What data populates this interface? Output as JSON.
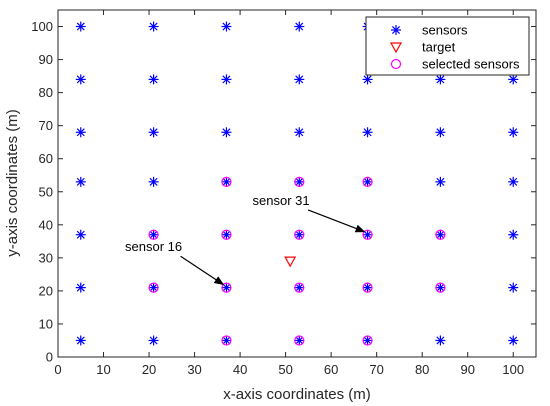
{
  "chart_data": {
    "type": "scatter",
    "xlabel": "x-axis coordinates (m)",
    "ylabel": "y-axis coordinates (m)",
    "xlim": [
      0,
      105
    ],
    "ylim": [
      0,
      105
    ],
    "xticks": [
      "0",
      "10",
      "20",
      "30",
      "40",
      "50",
      "60",
      "70",
      "80",
      "90",
      "100"
    ],
    "yticks": [
      "0",
      "10",
      "20",
      "30",
      "40",
      "50",
      "60",
      "70",
      "80",
      "90",
      "100"
    ],
    "grid": false,
    "legend_position": "top-right",
    "series": [
      {
        "name": "sensors",
        "marker": "asterisk",
        "color": "#0000ff",
        "x": [
          5,
          21,
          37,
          53,
          68,
          84,
          100
        ],
        "y": [
          5,
          21,
          37,
          53,
          68,
          84,
          100
        ],
        "layout": "grid"
      },
      {
        "name": "target",
        "marker": "triangle-down",
        "color": "#ff0000",
        "points": [
          [
            51,
            29
          ]
        ]
      },
      {
        "name": "selected sensors",
        "marker": "circle",
        "color": "#ff00ff",
        "points": [
          [
            37,
            5
          ],
          [
            53,
            5
          ],
          [
            68,
            5
          ],
          [
            21,
            21
          ],
          [
            37,
            21
          ],
          [
            53,
            21
          ],
          [
            68,
            21
          ],
          [
            84,
            21
          ],
          [
            21,
            37
          ],
          [
            37,
            37
          ],
          [
            53,
            37
          ],
          [
            68,
            37
          ],
          [
            84,
            37
          ],
          [
            37,
            53
          ],
          [
            53,
            53
          ],
          [
            68,
            53
          ]
        ]
      }
    ],
    "annotations": [
      {
        "text": "sensor 16",
        "target": [
          37,
          21
        ],
        "label_at": [
          21,
          32
        ]
      },
      {
        "text": "sensor 31",
        "target": [
          68,
          37
        ],
        "label_at": [
          49,
          46
        ]
      }
    ]
  }
}
